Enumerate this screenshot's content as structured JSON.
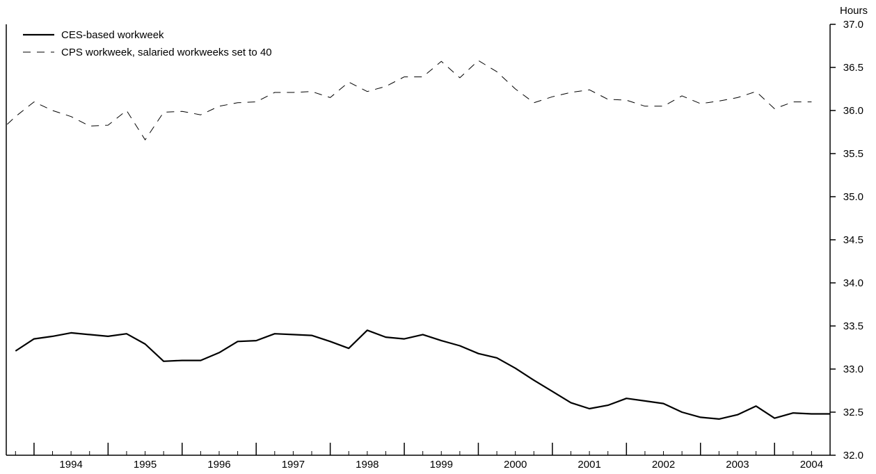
{
  "chart_data": {
    "type": "line",
    "ylabel": "Hours",
    "ylim": [
      32.0,
      37.0
    ],
    "yticks": [
      "32.0",
      "32.5",
      "33.0",
      "33.5",
      "34.0",
      "34.5",
      "35.0",
      "35.5",
      "36.0",
      "36.5",
      "37.0"
    ],
    "xlim": [
      1993.625,
      2004.75
    ],
    "xticks": [
      "1994",
      "1995",
      "1996",
      "1997",
      "1998",
      "1999",
      "2000",
      "2001",
      "2002",
      "2003",
      "2004"
    ],
    "legend_position": "top-left",
    "grid": false,
    "series": [
      {
        "name": "CES-based workweek",
        "style": "solid",
        "color": "#000000",
        "x": [
          1993.75,
          1994.0,
          1994.25,
          1994.5,
          1994.75,
          1995.0,
          1995.25,
          1995.5,
          1995.75,
          1996.0,
          1996.25,
          1996.5,
          1996.75,
          1997.0,
          1997.25,
          1997.5,
          1997.75,
          1998.0,
          1998.25,
          1998.5,
          1998.75,
          1999.0,
          1999.25,
          1999.5,
          1999.75,
          2000.0,
          2000.25,
          2000.5,
          2000.75,
          2001.0,
          2001.25,
          2001.5,
          2001.75,
          2002.0,
          2002.25,
          2002.5,
          2002.75,
          2003.0,
          2003.25,
          2003.5,
          2003.75,
          2004.0,
          2004.25,
          2004.5,
          2004.75
        ],
        "values": [
          33.21,
          33.35,
          33.38,
          33.42,
          33.4,
          33.38,
          33.41,
          33.29,
          33.09,
          33.1,
          33.1,
          33.19,
          33.32,
          33.33,
          33.41,
          33.4,
          33.39,
          33.32,
          33.24,
          33.45,
          33.37,
          33.35,
          33.4,
          33.33,
          33.27,
          33.18,
          33.13,
          33.01,
          32.87,
          32.74,
          32.61,
          32.54,
          32.58,
          32.66,
          32.63,
          32.6,
          32.5,
          32.44,
          32.42,
          32.47,
          32.57,
          32.43,
          32.49,
          32.48,
          32.48
        ]
      },
      {
        "name": "CPS workweek, salaried workweeks set to 40",
        "style": "dashed",
        "color": "#000000",
        "x": [
          1993.5,
          1993.75,
          1994.0,
          1994.25,
          1994.5,
          1994.75,
          1995.0,
          1995.25,
          1995.5,
          1995.75,
          1996.0,
          1996.25,
          1996.5,
          1996.75,
          1997.0,
          1997.25,
          1997.5,
          1997.75,
          1998.0,
          1998.25,
          1998.5,
          1998.75,
          1999.0,
          1999.25,
          1999.5,
          1999.75,
          2000.0,
          2000.25,
          2000.5,
          2000.75,
          2001.0,
          2001.25,
          2001.5,
          2001.75,
          2002.0,
          2002.25,
          2002.5,
          2002.75,
          2003.0,
          2003.25,
          2003.5,
          2003.75,
          2004.0,
          2004.25,
          2004.5
        ],
        "values": [
          35.73,
          35.93,
          36.1,
          36.0,
          35.93,
          35.82,
          35.83,
          36.0,
          35.66,
          35.98,
          35.99,
          35.95,
          36.05,
          36.09,
          36.1,
          36.21,
          36.21,
          36.22,
          36.15,
          36.33,
          36.22,
          36.28,
          36.39,
          36.39,
          36.57,
          36.38,
          36.58,
          36.45,
          36.25,
          36.09,
          36.16,
          36.21,
          36.24,
          36.13,
          36.12,
          36.05,
          36.05,
          36.17,
          36.08,
          36.11,
          36.15,
          36.22,
          36.02,
          36.1,
          36.1
        ]
      }
    ]
  }
}
